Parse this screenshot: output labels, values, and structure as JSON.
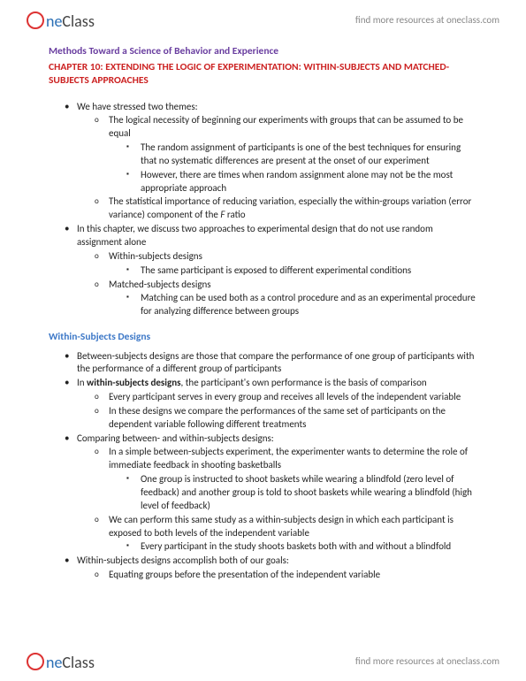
{
  "brand": {
    "one": "ne",
    "class": "Class",
    "tagline": "find more resources at oneclass.com"
  },
  "doc": {
    "title_main": "Methods Toward a Science of Behavior and Experience",
    "title_chapter": "CHAPTER 10: EXTENDING THE LOGIC OF EXPERIMENTATION: WITHIN-SUBJECTS AND MATCHED-SUBJECTS APPROACHES",
    "section1_heading": "Within-Subjects Designs",
    "intro": {
      "b1": "We have stressed two themes:",
      "b1_1": "The logical necessity of beginning our experiments with groups that can be assumed to be equal",
      "b1_1_1": "The random assignment of participants is one of the best techniques for ensuring that no systematic differences are present at the onset of our experiment",
      "b1_1_2": "However, there are times when random assignment alone may not be the most appropriate approach",
      "b1_2_pre": "The statistical importance of reducing variation, especially the within-groups variation (error variance) component of the ",
      "b1_2_italic": "F",
      "b1_2_post": " ratio",
      "b2": "In this chapter, we discuss two approaches to experimental design that do not use random assignment alone",
      "b2_1": "Within-subjects designs",
      "b2_1_1": "The same participant is exposed to different experimental conditions",
      "b2_2": "Matched-subjects designs",
      "b2_2_1": "Matching can be used both as a control procedure and as an experimental procedure for analyzing difference between groups"
    },
    "sec1": {
      "b1": "Between-subjects designs are those that compare the performance of one group of participants with the performance of a different group of participants",
      "b2_pre": "In ",
      "b2_bold": "within-subjects designs",
      "b2_post": ", the participant's own performance is the basis of comparison",
      "b2_1": "Every participant serves in every group and receives all levels of the independent variable",
      "b2_2": "In these designs we compare the performances of the same set of participants on the dependent variable following different treatments",
      "b3": "Comparing between- and within-subjects designs:",
      "b3_1": "In a simple between-subjects experiment, the experimenter wants to determine the role of immediate feedback in shooting basketballs",
      "b3_1_1": "One group is instructed to shoot baskets while wearing a blindfold (zero level of feedback) and another group is told to shoot baskets while wearing a blindfold (high level of feedback)",
      "b3_2": "We can perform this same study as a within-subjects design in which each participant is exposed to both levels of the independent variable",
      "b3_2_1": "Every participant in the study shoots baskets both with and without a blindfold",
      "b4": "Within-subjects designs accomplish both of our goals:",
      "b4_1": "Equating groups before the presentation of the independent variable"
    }
  }
}
